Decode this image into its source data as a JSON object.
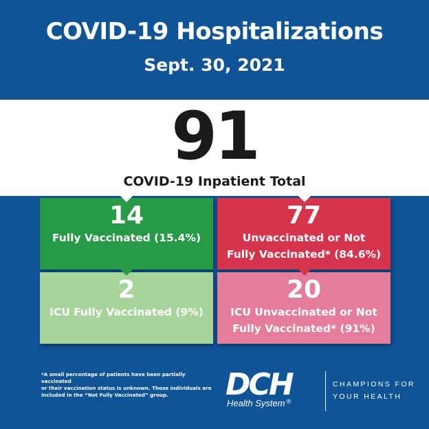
{
  "header": {
    "title": "COVID-19 Hospitalizations",
    "date": "Sept. 30, 2021"
  },
  "total": {
    "value": "91",
    "label": "COVID-19 Inpatient Total"
  },
  "boxes": [
    {
      "value": "14",
      "label_line1": "Fully Vaccinated (15.4%)",
      "label_line2": "",
      "color": "#279a46"
    },
    {
      "value": "77",
      "label_line1": "Unvaccinated or Not",
      "label_line2": "Fully Vaccinated* (84.6%)",
      "color": "#d6344c"
    },
    {
      "value": "2",
      "label_line1": "ICU Fully Vaccinated (9%)",
      "label_line2": "",
      "color": "#a7d49a"
    },
    {
      "value": "20",
      "label_line1": "ICU Unvaccinated or Not",
      "label_line2": "Fully Vaccinated* (91%)",
      "color": "#e57c9c"
    }
  ],
  "footnote": {
    "line1": "*A small percentage of patients have been partially vaccinated",
    "line2": "or their vaccination status is unknown. Those individuals are",
    "line3": "included in the “Not Fully Vaccinated” group."
  },
  "brand": {
    "logo_text": "DCH",
    "logo_sub": "Health System",
    "registered": "®",
    "tagline_line1": "CHAMPIONS FOR",
    "tagline_line2": "YOUR HEALTH"
  },
  "colors": {
    "background": "#0f5496",
    "white_band": "#ffffff"
  }
}
